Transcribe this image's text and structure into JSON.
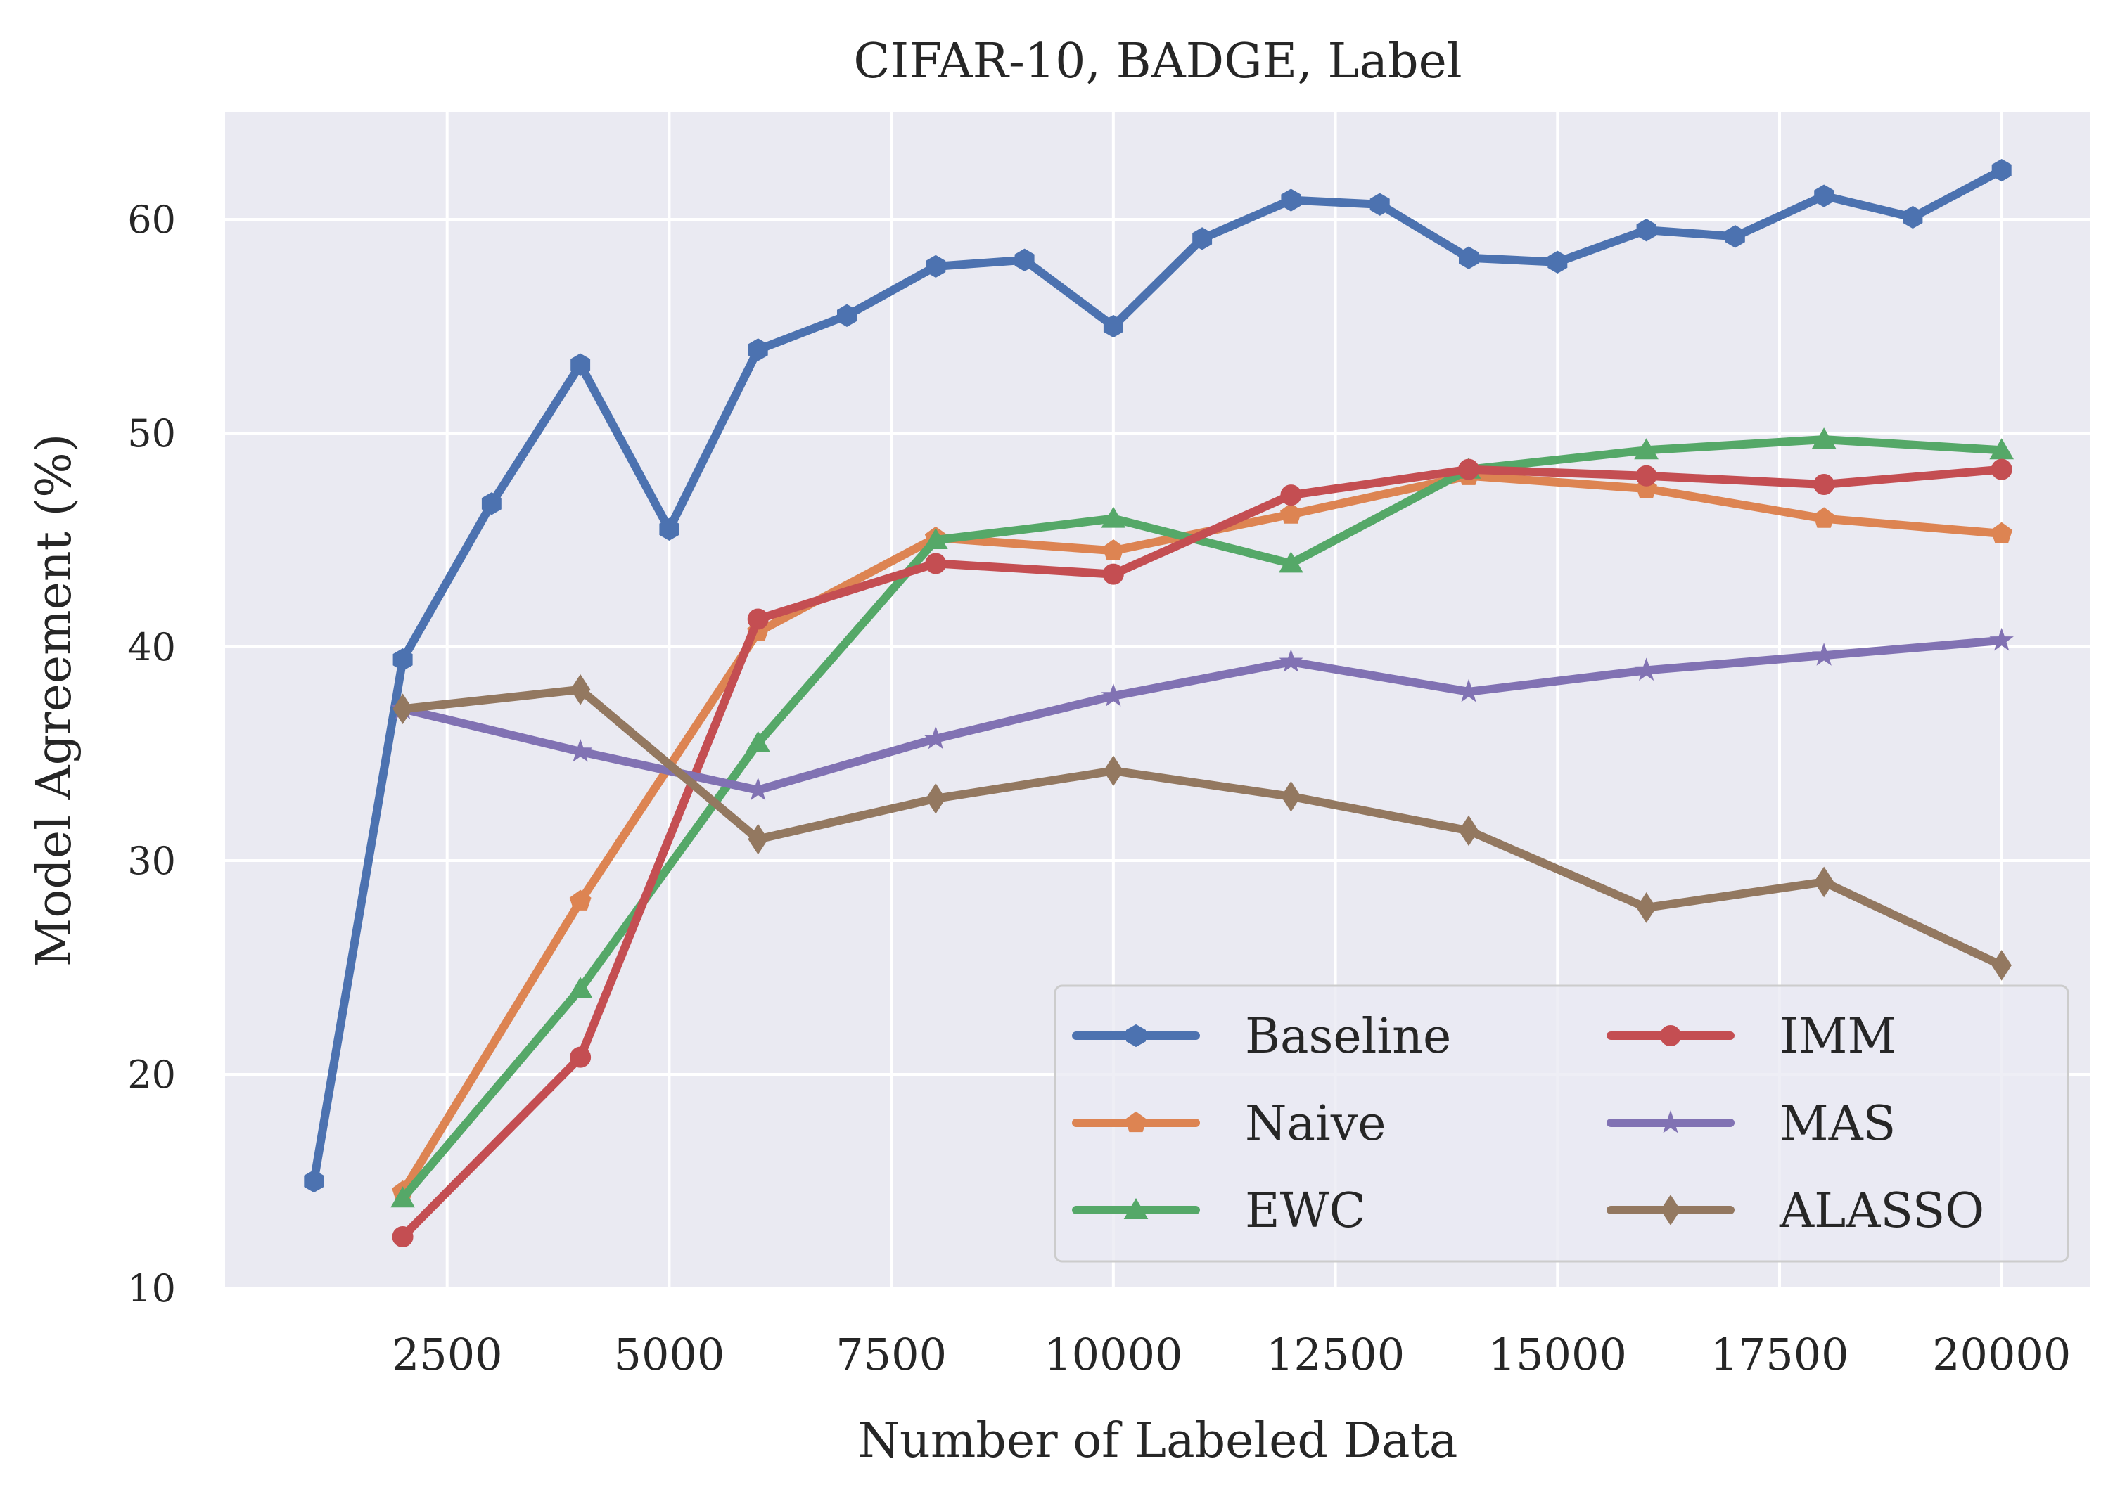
{
  "chart_data": {
    "type": "line",
    "title": "CIFAR-10, BADGE, Label",
    "xlabel": "Number of Labeled Data",
    "ylabel": "Model Agreement (%)",
    "xlim": [
      0,
      21000
    ],
    "ylim": [
      10,
      65
    ],
    "xticks": [
      2500,
      5000,
      7500,
      10000,
      12500,
      15000,
      17500,
      20000
    ],
    "yticks": [
      10,
      20,
      30,
      40,
      50,
      60
    ],
    "grid": true,
    "legend_placement": "lower-right",
    "legend_columns": 2,
    "series": [
      {
        "name": "Baseline",
        "color": "#4c72b0",
        "marker": "hexagon",
        "x": [
          1000,
          2000,
          3000,
          4000,
          5000,
          6000,
          7000,
          8000,
          9000,
          10000,
          11000,
          12000,
          13000,
          14000,
          15000,
          16000,
          17000,
          18000,
          19000,
          20000
        ],
        "y": [
          15.0,
          39.4,
          46.7,
          53.2,
          45.5,
          53.9,
          55.5,
          57.8,
          58.1,
          55.0,
          59.1,
          60.9,
          60.7,
          58.2,
          58.0,
          59.5,
          59.2,
          61.1,
          60.1,
          62.3
        ]
      },
      {
        "name": "Naive",
        "color": "#dd8452",
        "marker": "pentagon",
        "x": [
          2000,
          4000,
          6000,
          8000,
          10000,
          12000,
          14000,
          16000,
          18000,
          20000
        ],
        "y": [
          14.5,
          28.1,
          40.7,
          45.1,
          44.5,
          46.2,
          48.0,
          47.4,
          46.0,
          45.3
        ]
      },
      {
        "name": "EWC",
        "color": "#55a868",
        "marker": "triangle",
        "x": [
          2000,
          4000,
          6000,
          8000,
          10000,
          12000,
          14000,
          16000,
          18000,
          20000
        ],
        "y": [
          14.2,
          24.0,
          35.5,
          45.0,
          46.0,
          43.9,
          48.3,
          49.2,
          49.7,
          49.2
        ]
      },
      {
        "name": "IMM",
        "color": "#c44e52",
        "marker": "circle",
        "x": [
          2000,
          4000,
          6000,
          8000,
          10000,
          12000,
          14000,
          16000,
          18000,
          20000
        ],
        "y": [
          12.4,
          20.8,
          41.3,
          43.9,
          43.4,
          47.1,
          48.3,
          48.0,
          47.6,
          48.3
        ]
      },
      {
        "name": "MAS",
        "color": "#8172b3",
        "marker": "star",
        "x": [
          2000,
          4000,
          6000,
          8000,
          10000,
          12000,
          14000,
          16000,
          18000,
          20000
        ],
        "y": [
          37.1,
          35.1,
          33.3,
          35.7,
          37.7,
          39.3,
          37.9,
          38.9,
          39.6,
          40.3
        ]
      },
      {
        "name": "ALASSO",
        "color": "#937860",
        "marker": "diamond",
        "x": [
          2000,
          4000,
          6000,
          8000,
          10000,
          12000,
          14000,
          16000,
          18000,
          20000
        ],
        "y": [
          37.1,
          38.0,
          31.0,
          32.9,
          34.2,
          33.0,
          31.4,
          27.8,
          29.0,
          25.1
        ]
      }
    ]
  }
}
